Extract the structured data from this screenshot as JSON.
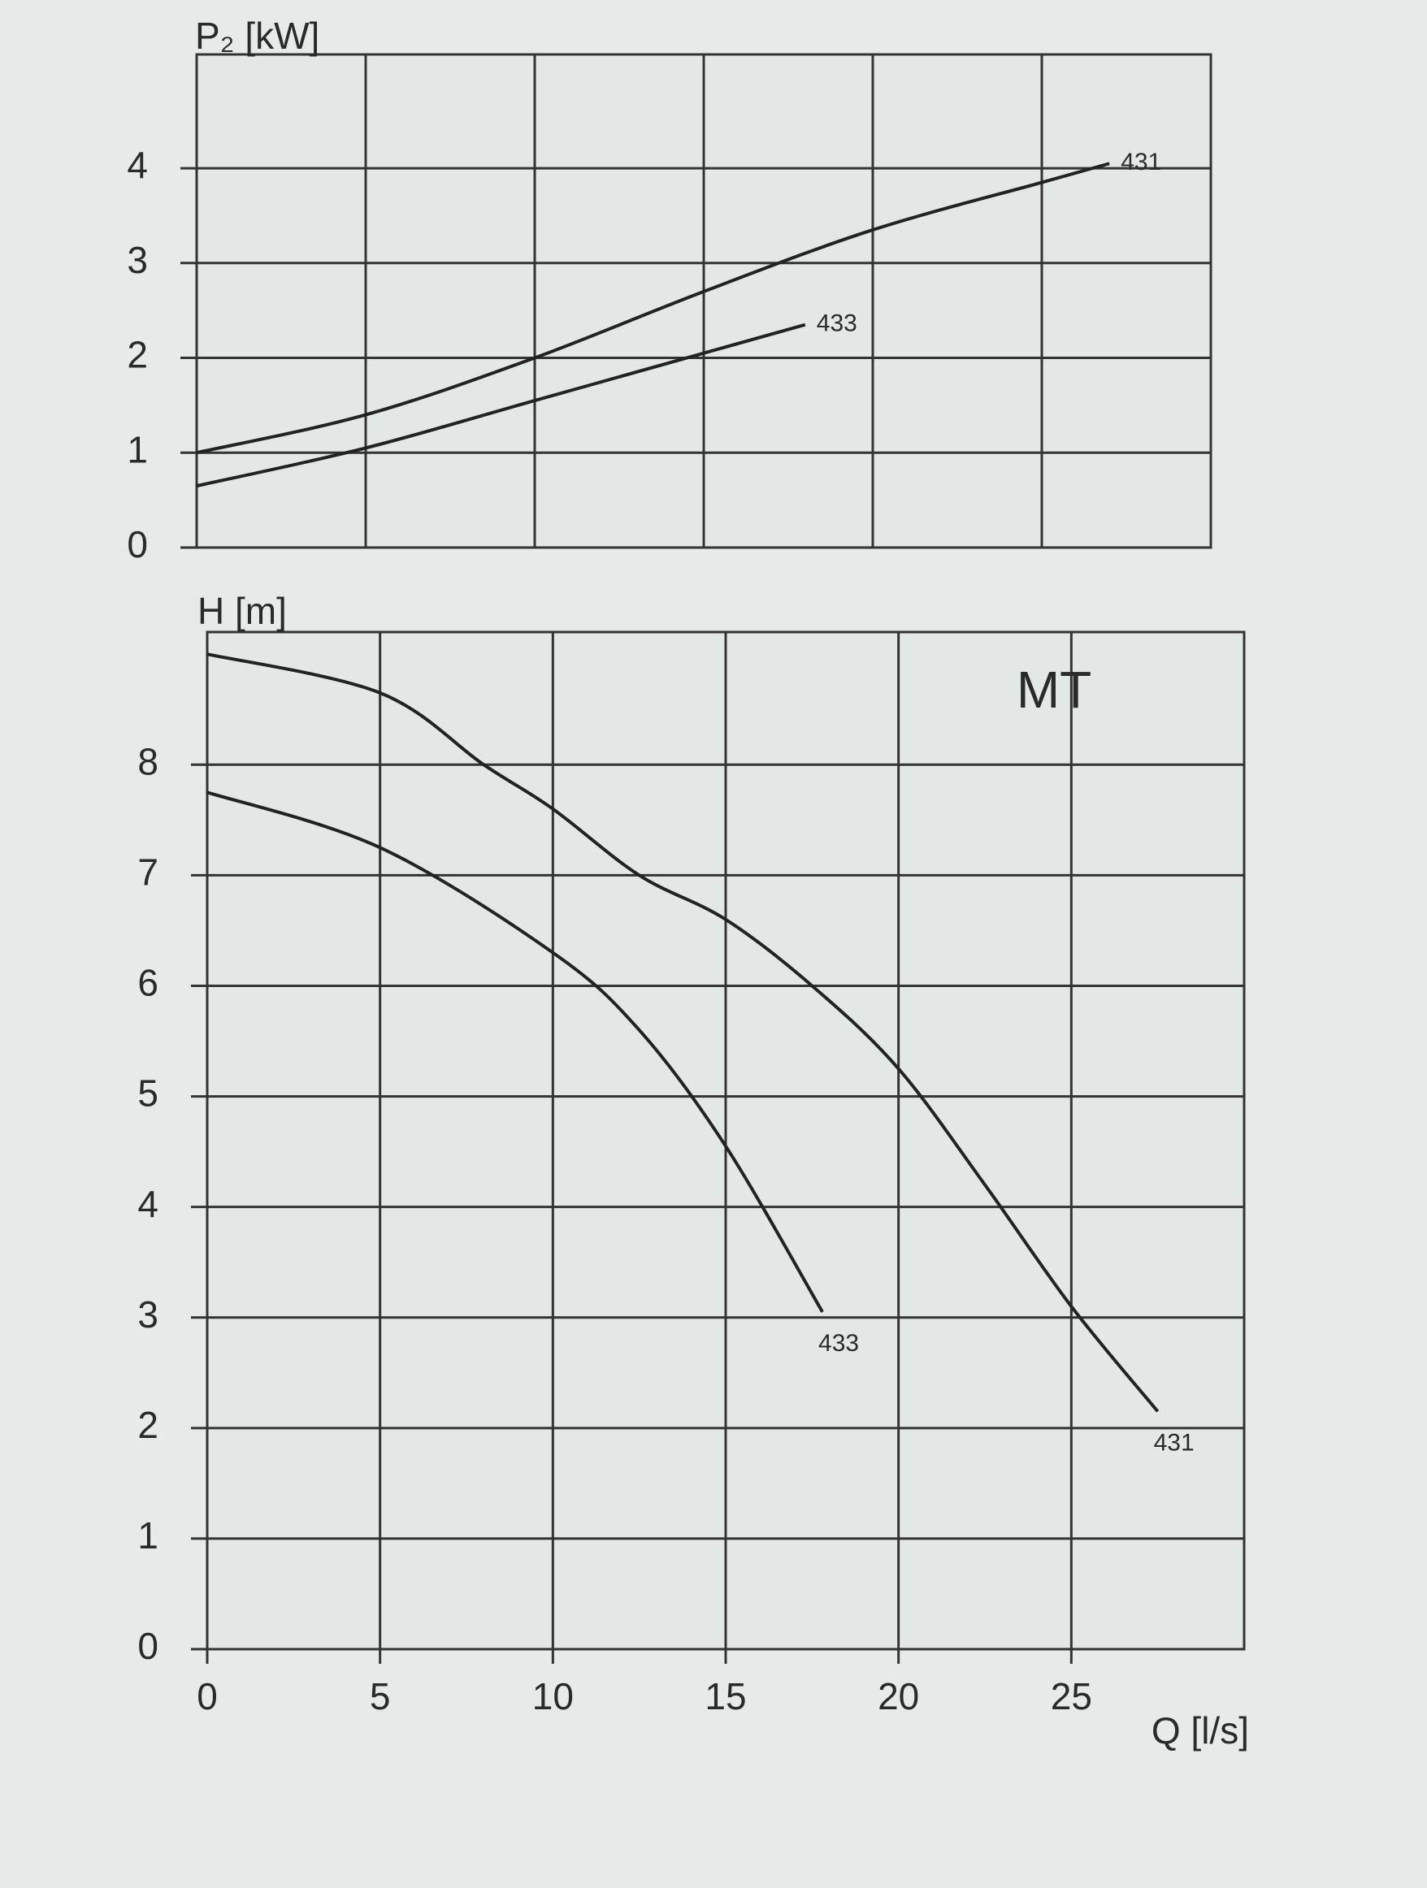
{
  "chart_data": [
    {
      "type": "line",
      "y_label": "P₂ [kW]",
      "xlim": [
        0,
        30
      ],
      "xticks": [
        0,
        5,
        10,
        15,
        20,
        25,
        30
      ],
      "ylim": [
        0,
        5.2
      ],
      "yticks": [
        0,
        1,
        2,
        3,
        4
      ],
      "grid": true,
      "series": [
        {
          "name": "431",
          "color": "#222222",
          "x": [
            0,
            5,
            10,
            15,
            20,
            25,
            27
          ],
          "values": [
            1.0,
            1.4,
            2.0,
            2.7,
            3.35,
            3.85,
            4.05
          ]
        },
        {
          "name": "433",
          "color": "#222222",
          "x": [
            0,
            5,
            10,
            15,
            18
          ],
          "values": [
            0.65,
            1.05,
            1.55,
            2.05,
            2.35
          ]
        }
      ]
    },
    {
      "type": "line",
      "y_label": "H [m]",
      "x_label": "Q [l/s]",
      "annotation": "MT",
      "xlim": [
        0,
        30
      ],
      "xticks": [
        0,
        5,
        10,
        15,
        20,
        25
      ],
      "ylim": [
        0,
        9.2
      ],
      "yticks": [
        0,
        1,
        2,
        3,
        4,
        5,
        6,
        7,
        8
      ],
      "grid": true,
      "series": [
        {
          "name": "431",
          "color": "#222222",
          "x": [
            0,
            5,
            8,
            10,
            12.5,
            15,
            17.5,
            20,
            22.5,
            25,
            27.5
          ],
          "values": [
            9.0,
            8.65,
            8.0,
            7.6,
            7.0,
            6.6,
            6.0,
            5.25,
            4.2,
            3.1,
            2.15
          ]
        },
        {
          "name": "433",
          "color": "#222222",
          "x": [
            0,
            5,
            10,
            12.5,
            15,
            17.8
          ],
          "values": [
            7.75,
            7.25,
            6.3,
            5.6,
            4.55,
            3.05
          ]
        }
      ]
    }
  ]
}
